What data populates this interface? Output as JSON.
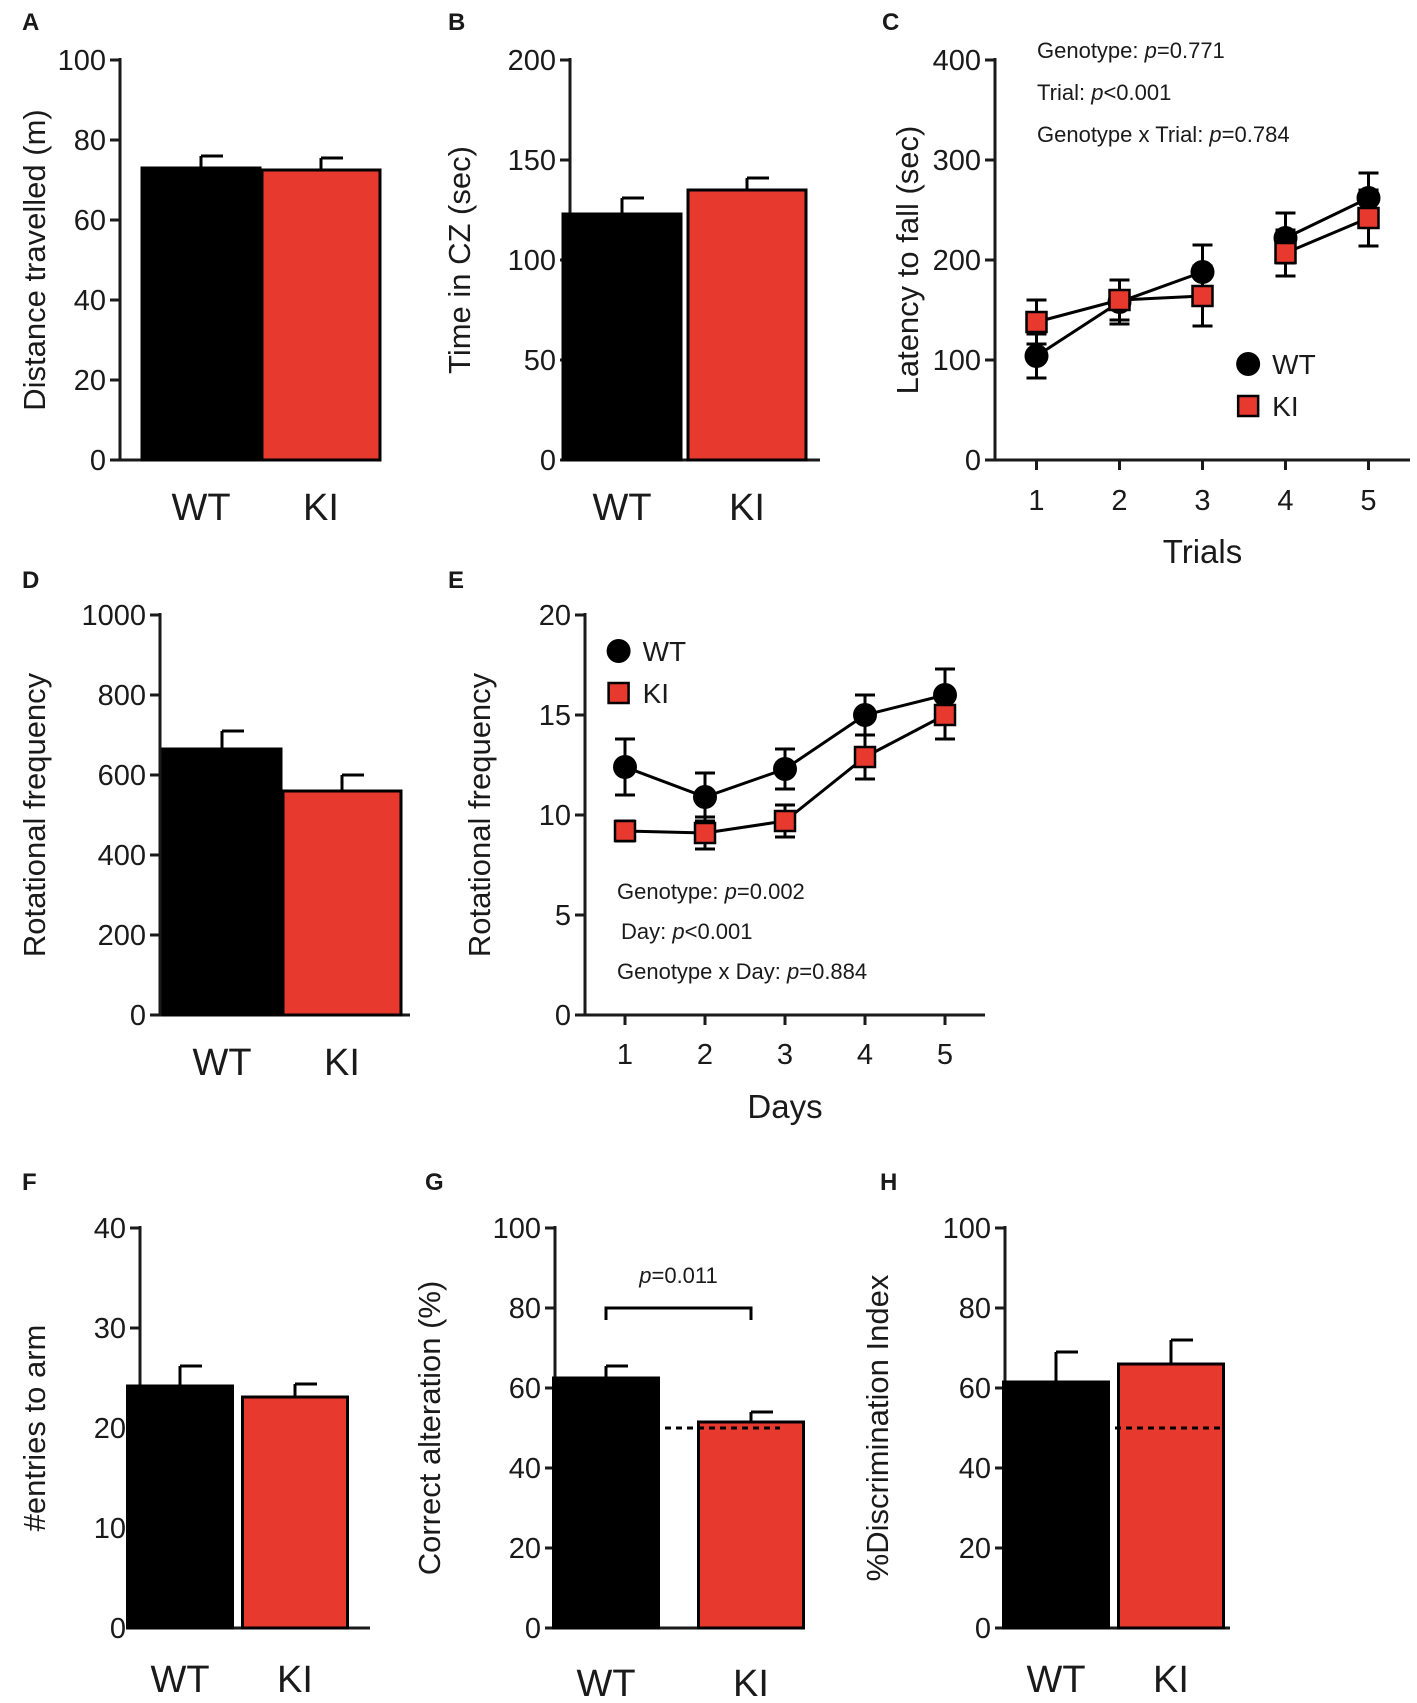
{
  "figure": {
    "colors": {
      "wt": "#000000",
      "ki": "#e8392e",
      "axis": "#1a1a1a"
    }
  },
  "chart_data": [
    {
      "panel": "A",
      "type": "bar",
      "categories": [
        "WT",
        "KI"
      ],
      "values": [
        73,
        72.5
      ],
      "errors": [
        3,
        3
      ],
      "ylabel": "Distance travelled (m)",
      "xlabel": "",
      "ylim": [
        0,
        100
      ],
      "yticks": [
        0,
        20,
        40,
        60,
        80,
        100
      ],
      "colors": [
        "#000000",
        "#e8392e"
      ],
      "annotations": [],
      "reference_line": null
    },
    {
      "panel": "B",
      "type": "bar",
      "categories": [
        "WT",
        "KI"
      ],
      "values": [
        123,
        135
      ],
      "errors": [
        8,
        6
      ],
      "ylabel": "Time in CZ (sec)",
      "xlabel": "",
      "ylim": [
        0,
        200
      ],
      "yticks": [
        0,
        50,
        100,
        150,
        200
      ],
      "colors": [
        "#000000",
        "#e8392e"
      ],
      "annotations": [],
      "reference_line": null
    },
    {
      "panel": "C",
      "type": "line",
      "x": [
        1,
        2,
        3,
        4,
        5
      ],
      "xlim": [
        0.5,
        5.5
      ],
      "xticks": [
        1,
        2,
        3,
        4,
        5
      ],
      "breaks_after": [
        3
      ],
      "series": [
        {
          "name": "WT",
          "values": [
            104,
            158,
            188,
            222,
            262
          ],
          "errors": [
            22,
            22,
            27,
            25,
            25
          ],
          "marker": "circle",
          "color": "#000000"
        },
        {
          "name": "KI",
          "values": [
            138,
            160,
            164,
            207,
            242
          ],
          "errors": [
            22,
            20,
            30,
            23,
            28
          ],
          "marker": "square",
          "color": "#e8392e"
        }
      ],
      "ylabel": "Latency to fall (sec)",
      "xlabel": "Trials",
      "ylim": [
        0,
        400
      ],
      "yticks": [
        0,
        100,
        200,
        300,
        400
      ],
      "legend_position": "lower-right",
      "annotations": [
        "Genotype: p=0.771",
        "Trial: p<0.001",
        "Genotype x Trial: p=0.784"
      ]
    },
    {
      "panel": "D",
      "type": "bar",
      "categories": [
        "WT",
        "KI"
      ],
      "values": [
        665,
        560
      ],
      "errors": [
        45,
        40
      ],
      "ylabel": "Rotational frequency",
      "xlabel": "",
      "ylim": [
        0,
        1000
      ],
      "yticks": [
        0,
        200,
        400,
        600,
        800,
        1000
      ],
      "colors": [
        "#000000",
        "#e8392e"
      ],
      "annotations": [],
      "reference_line": null
    },
    {
      "panel": "E",
      "type": "line",
      "x": [
        1,
        2,
        3,
        4,
        5
      ],
      "xlim": [
        0.5,
        5.5
      ],
      "xticks": [
        1,
        2,
        3,
        4,
        5
      ],
      "breaks_after": [],
      "series": [
        {
          "name": "WT",
          "values": [
            12.4,
            10.9,
            12.3,
            15.0,
            16.0
          ],
          "errors": [
            1.4,
            1.2,
            1.0,
            1.0,
            1.3
          ],
          "marker": "circle",
          "color": "#000000"
        },
        {
          "name": "KI",
          "values": [
            9.2,
            9.1,
            9.7,
            12.9,
            15.0
          ],
          "errors": [
            0.5,
            0.8,
            0.8,
            1.1,
            1.2
          ],
          "marker": "square",
          "color": "#e8392e"
        }
      ],
      "ylabel": "Rotational frequency",
      "xlabel": "Days",
      "ylim": [
        0,
        20
      ],
      "yticks": [
        0,
        5,
        10,
        15,
        20
      ],
      "legend_position": "top-left",
      "annotations": [
        "Genotype: p=0.002",
        "Day: p<0.001",
        "Genotype x Day: p=0.884"
      ]
    },
    {
      "panel": "F",
      "type": "bar",
      "categories": [
        "WT",
        "KI"
      ],
      "values": [
        24.2,
        23.1
      ],
      "errors": [
        2.0,
        1.3
      ],
      "ylabel": "#entries to arm",
      "xlabel": "",
      "ylim": [
        0,
        40
      ],
      "yticks": [
        0,
        10,
        20,
        30,
        40
      ],
      "colors": [
        "#000000",
        "#e8392e"
      ],
      "annotations": [],
      "reference_line": null
    },
    {
      "panel": "G",
      "type": "bar",
      "categories": [
        "WT",
        "KI"
      ],
      "values": [
        62.5,
        51.5
      ],
      "errors": [
        3,
        2.5
      ],
      "ylabel": "Correct alteration (%)",
      "xlabel": "",
      "ylim": [
        0,
        100
      ],
      "yticks": [
        0,
        20,
        40,
        60,
        80,
        100
      ],
      "colors": [
        "#000000",
        "#e8392e"
      ],
      "annotations": [],
      "reference_line": 50,
      "significance": "p=0.011"
    },
    {
      "panel": "H",
      "type": "bar",
      "categories": [
        "WT",
        "KI"
      ],
      "values": [
        61.5,
        66
      ],
      "errors": [
        7.5,
        6
      ],
      "ylabel": "%Discrimination Index",
      "xlabel": "",
      "ylim": [
        0,
        100
      ],
      "yticks": [
        0,
        20,
        40,
        60,
        80,
        100
      ],
      "colors": [
        "#000000",
        "#e8392e"
      ],
      "annotations": [],
      "reference_line": 50
    }
  ]
}
